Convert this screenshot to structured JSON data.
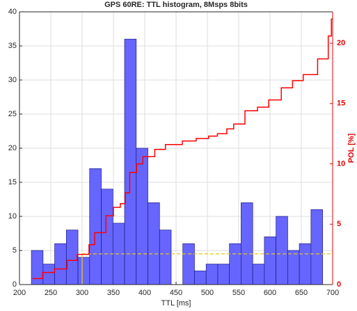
{
  "chart_data": {
    "type": "histogram",
    "title": "GPS 60RE: TTL histogram, 8Msps 8bits",
    "xlabel": "TTL [ms]",
    "y2label": "POL [%]",
    "bins": [
      219,
      237.6,
      256.2,
      274.8,
      293.4,
      312,
      330.6,
      349.2,
      367.8,
      386.4,
      405,
      423.6,
      442.2,
      460.8,
      479.4,
      498,
      516.6,
      535.2,
      553.8,
      572.4,
      591,
      609.6,
      628.2,
      646.8,
      665.4,
      684
    ],
    "values": [
      5,
      3,
      6,
      8,
      4,
      17,
      14,
      9,
      36,
      20,
      12,
      8,
      0,
      6,
      2,
      3,
      3,
      6,
      12,
      3,
      7,
      10,
      5,
      6,
      11
    ],
    "color": "#6666ff",
    "edgecolor": "#1a1a80",
    "xlim": [
      200,
      700
    ],
    "xticks": [
      200,
      250,
      300,
      350,
      400,
      450,
      500,
      550,
      600,
      650,
      700
    ],
    "ylim": [
      0,
      40
    ],
    "yticks": [
      0,
      5,
      10,
      15,
      20,
      25,
      30,
      35,
      40
    ],
    "y2lim": [
      0,
      22.6
    ],
    "y2ticks": [
      0,
      5,
      10,
      15,
      20
    ],
    "grid": true,
    "series": [
      {
        "color": "#ff0000",
        "axis": "y2",
        "step": true,
        "x": [
          221,
          237,
          256,
          276,
          292,
          311,
          320,
          338,
          350,
          361,
          369,
          376,
          387,
          397,
          416,
          433,
          460,
          482,
          502,
          516,
          531,
          542,
          560,
          580,
          598,
          618,
          636,
          653,
          676,
          693,
          698,
          700
        ],
        "values": [
          0.5,
          1.0,
          1.3,
          2.0,
          2.5,
          3.3,
          4.3,
          5.7,
          6.4,
          6.7,
          7.6,
          9.3,
          10.0,
          10.6,
          11.2,
          11.6,
          11.9,
          12.1,
          12.3,
          12.5,
          12.9,
          13.3,
          14.4,
          14.7,
          15.3,
          16.3,
          16.9,
          17.4,
          18.7,
          20.6,
          22.0,
          22.0
        ]
      }
    ],
    "threshold": {
      "x": 300,
      "y": 4.5,
      "xend": 700,
      "color": "#e6c619"
    }
  }
}
